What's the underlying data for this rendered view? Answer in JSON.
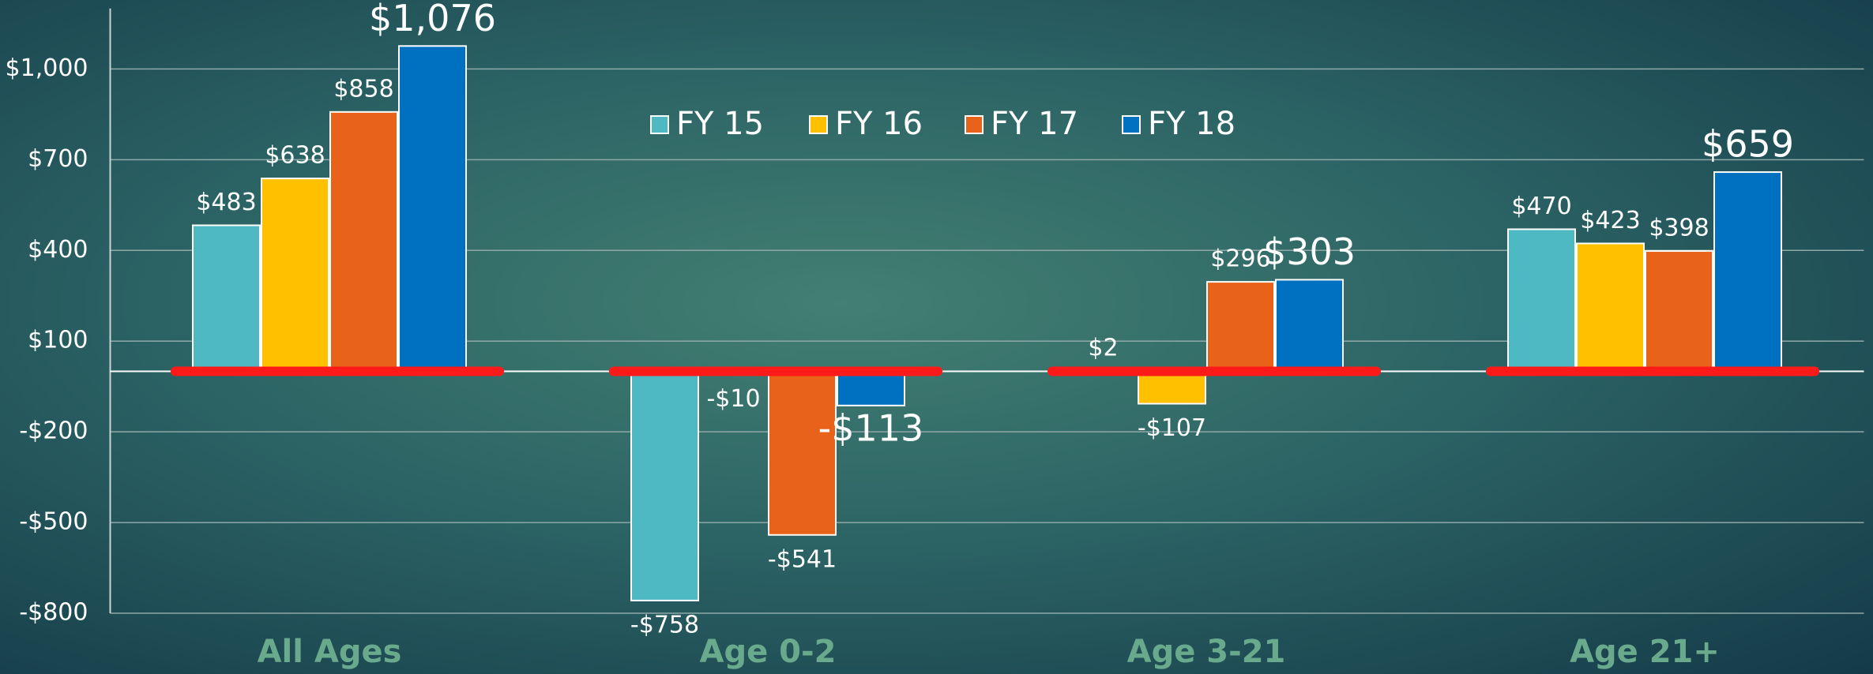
{
  "chart_data": {
    "type": "bar",
    "categories": [
      "All Ages",
      "Age 0-2",
      "Age 3-21",
      "Age 21+"
    ],
    "series": [
      {
        "name": "FY 15",
        "color": "#4fb9c3",
        "values": [
          483,
          -758,
          2,
          470
        ],
        "value_labels": [
          "$483",
          "-$758",
          "$2",
          "$470"
        ]
      },
      {
        "name": "FY 16",
        "color": "#ffc000",
        "values": [
          638,
          -10,
          -107,
          423
        ],
        "value_labels": [
          "$638",
          "-$10",
          "-$107",
          "$423"
        ]
      },
      {
        "name": "FY 17",
        "color": "#e8621a",
        "values": [
          858,
          -541,
          296,
          398
        ],
        "value_labels": [
          "$858",
          "-$541",
          "$296",
          "$398"
        ]
      },
      {
        "name": "FY 18",
        "color": "#0070c0",
        "values": [
          1076,
          -113,
          303,
          659
        ],
        "value_labels": [
          "$1,076",
          "-$113",
          "$303",
          "$659"
        ]
      }
    ],
    "ylim": [
      -800,
      1200
    ],
    "yticks": [
      {
        "value": -800,
        "label": "-$800"
      },
      {
        "value": -500,
        "label": "-$500"
      },
      {
        "value": -200,
        "label": "-$200"
      },
      {
        "value": 100,
        "label": "$100"
      },
      {
        "value": 400,
        "label": "$400"
      },
      {
        "value": 700,
        "label": "$700"
      },
      {
        "value": 1000,
        "label": "$1,000"
      }
    ],
    "grid": true,
    "legend": "top"
  }
}
